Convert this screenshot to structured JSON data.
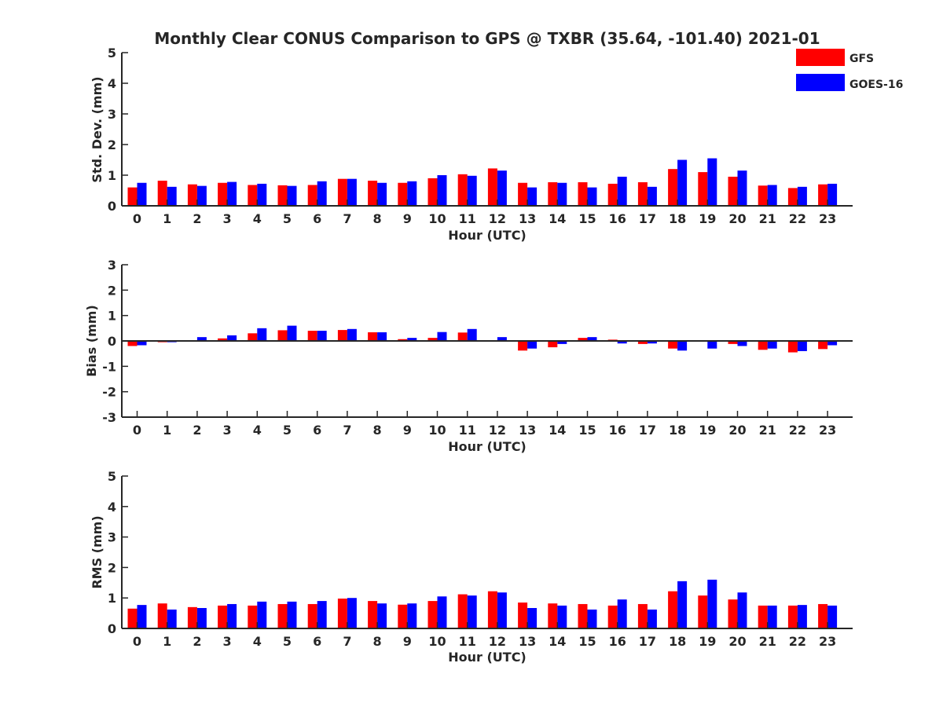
{
  "chart_data": {
    "title": "Monthly Clear CONUS Comparison to GPS @ TXBR (35.64, -101.40) 2021-01",
    "type": "bar",
    "legend": {
      "placement": "top-right",
      "entries": [
        {
          "name": "GFS",
          "color": "#ff0000"
        },
        {
          "name": "GOES-16",
          "color": "#0000ff"
        }
      ]
    },
    "panels": [
      {
        "id": "std",
        "type": "bar",
        "xlabel": "Hour (UTC)",
        "ylabel": "Std. Dev. (mm)",
        "ylim": [
          0,
          5
        ],
        "yticks": [
          "0",
          "1",
          "2",
          "3",
          "4",
          "5"
        ],
        "categories": [
          "0",
          "1",
          "2",
          "3",
          "4",
          "5",
          "6",
          "7",
          "8",
          "9",
          "10",
          "11",
          "12",
          "13",
          "14",
          "15",
          "16",
          "17",
          "18",
          "19",
          "20",
          "21",
          "22",
          "23"
        ],
        "series": [
          {
            "name": "GFS",
            "color": "#ff0000",
            "values": [
              0.6,
              0.82,
              0.7,
              0.75,
              0.68,
              0.67,
              0.68,
              0.88,
              0.82,
              0.75,
              0.9,
              1.03,
              1.22,
              0.75,
              0.77,
              0.77,
              0.72,
              0.77,
              1.2,
              1.1,
              0.95,
              0.66,
              0.58,
              0.7
            ]
          },
          {
            "name": "GOES-16",
            "color": "#0000ff",
            "values": [
              0.75,
              0.62,
              0.65,
              0.78,
              0.72,
              0.65,
              0.8,
              0.88,
              0.75,
              0.8,
              1.0,
              0.98,
              1.15,
              0.6,
              0.75,
              0.6,
              0.95,
              0.62,
              1.5,
              1.55,
              1.15,
              0.68,
              0.62,
              0.72
            ]
          }
        ]
      },
      {
        "id": "bias",
        "type": "bar",
        "xlabel": "Hour (UTC)",
        "ylabel": "Bias (mm)",
        "ylim": [
          -3,
          3
        ],
        "yticks": [
          "-3",
          "-2",
          "-1",
          "0",
          "1",
          "2",
          "3"
        ],
        "categories": [
          "0",
          "1",
          "2",
          "3",
          "4",
          "5",
          "6",
          "7",
          "8",
          "9",
          "10",
          "11",
          "12",
          "13",
          "14",
          "15",
          "16",
          "17",
          "18",
          "19",
          "20",
          "21",
          "22",
          "23"
        ],
        "series": [
          {
            "name": "GFS",
            "color": "#ff0000",
            "values": [
              -0.2,
              -0.05,
              0.03,
              0.1,
              0.3,
              0.42,
              0.4,
              0.43,
              0.34,
              0.07,
              0.12,
              0.33,
              0.03,
              -0.38,
              -0.25,
              0.12,
              0.05,
              -0.12,
              -0.3,
              0.0,
              -0.12,
              -0.35,
              -0.45,
              -0.32
            ]
          },
          {
            "name": "GOES-16",
            "color": "#0000ff",
            "values": [
              -0.17,
              -0.05,
              0.15,
              0.22,
              0.5,
              0.6,
              0.4,
              0.47,
              0.34,
              0.12,
              0.35,
              0.47,
              0.15,
              -0.3,
              -0.12,
              0.15,
              -0.1,
              -0.1,
              -0.38,
              -0.3,
              -0.2,
              -0.3,
              -0.4,
              -0.17
            ]
          }
        ]
      },
      {
        "id": "rms",
        "type": "bar",
        "xlabel": "Hour (UTC)",
        "ylabel": "RMS (mm)",
        "ylim": [
          0,
          5
        ],
        "yticks": [
          "0",
          "1",
          "2",
          "3",
          "4",
          "5"
        ],
        "categories": [
          "0",
          "1",
          "2",
          "3",
          "4",
          "5",
          "6",
          "7",
          "8",
          "9",
          "10",
          "11",
          "12",
          "13",
          "14",
          "15",
          "16",
          "17",
          "18",
          "19",
          "20",
          "21",
          "22",
          "23"
        ],
        "series": [
          {
            "name": "GFS",
            "color": "#ff0000",
            "values": [
              0.65,
              0.82,
              0.7,
              0.75,
              0.75,
              0.8,
              0.8,
              0.98,
              0.9,
              0.78,
              0.9,
              1.12,
              1.22,
              0.85,
              0.82,
              0.8,
              0.75,
              0.8,
              1.22,
              1.08,
              0.95,
              0.75,
              0.75,
              0.8
            ]
          },
          {
            "name": "GOES-16",
            "color": "#0000ff",
            "values": [
              0.77,
              0.62,
              0.67,
              0.8,
              0.88,
              0.88,
              0.9,
              1.0,
              0.82,
              0.82,
              1.05,
              1.08,
              1.18,
              0.67,
              0.75,
              0.62,
              0.95,
              0.62,
              1.55,
              1.6,
              1.18,
              0.75,
              0.77,
              0.75
            ]
          }
        ]
      }
    ]
  }
}
